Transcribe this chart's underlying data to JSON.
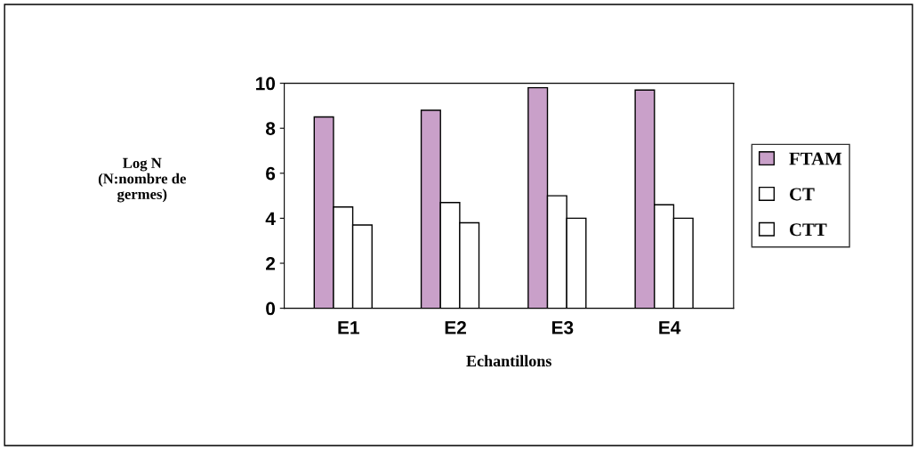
{
  "chart_data": {
    "type": "bar",
    "xlabel": "Echantillons",
    "ylabel": "Log N\n(N:nombre de\ngermes)",
    "categories": [
      "E1",
      "E2",
      "E3",
      "E4"
    ],
    "series": [
      {
        "name": "FTAM",
        "color": "#c9a0c9",
        "values": [
          8.5,
          8.8,
          9.8,
          9.7
        ]
      },
      {
        "name": "CT",
        "color": "#ffffff",
        "values": [
          4.5,
          4.7,
          5.0,
          4.6
        ]
      },
      {
        "name": "CTT",
        "color": "#ffffff",
        "values": [
          3.7,
          3.8,
          4.0,
          4.0
        ]
      }
    ],
    "ylim": [
      0,
      10
    ],
    "yticks": [
      0,
      2,
      4,
      6,
      8,
      10
    ],
    "grid": false,
    "legend": "right"
  }
}
